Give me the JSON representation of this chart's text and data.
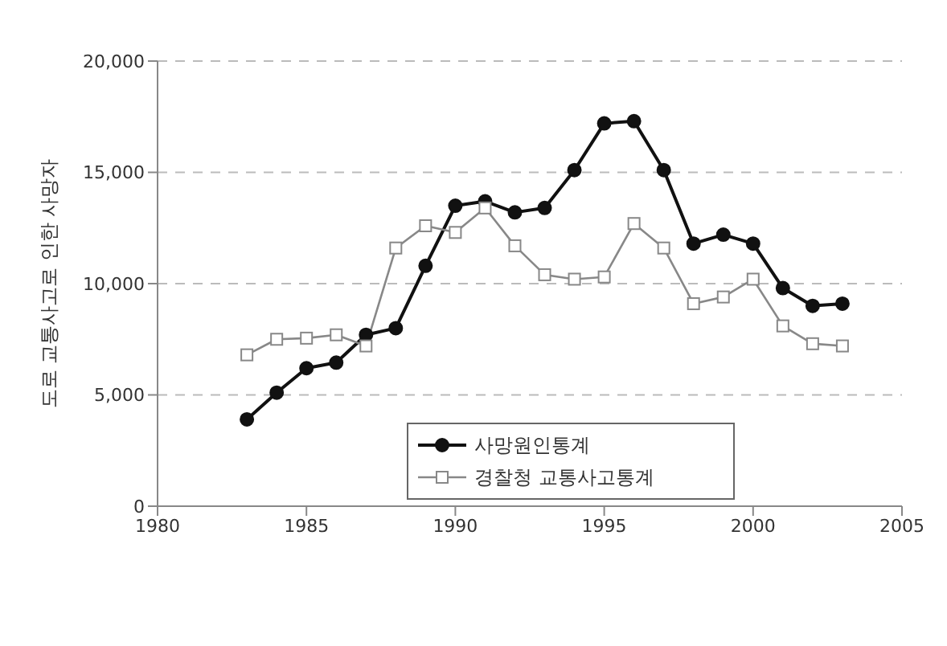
{
  "chart_data": {
    "type": "line",
    "ylabel": "도로 교통사고로 인한 사망자",
    "x": [
      1983,
      1984,
      1985,
      1986,
      1987,
      1988,
      1989,
      1990,
      1991,
      1992,
      1993,
      1994,
      1995,
      1996,
      1997,
      1998,
      1999,
      2000,
      2001,
      2002,
      2003
    ],
    "series": [
      {
        "name": "사망원인통계",
        "color": "#111111",
        "marker": "circle",
        "values": [
          3900,
          5100,
          6200,
          6450,
          7700,
          8000,
          10800,
          13500,
          13700,
          13200,
          13400,
          15100,
          17200,
          17300,
          15100,
          11800,
          12200,
          11800,
          9800,
          9000,
          9100
        ]
      },
      {
        "name": "경찰청 교통사고통계",
        "color": "#888888",
        "marker": "square",
        "values": [
          6800,
          7500,
          7550,
          7700,
          7200,
          11600,
          12600,
          12300,
          13400,
          11700,
          10400,
          10200,
          10300,
          12700,
          11600,
          9100,
          9400,
          10200,
          8100,
          7300,
          7200
        ]
      }
    ],
    "xlim": [
      1980,
      2005
    ],
    "xticks": [
      1980,
      1985,
      1990,
      1995,
      2000,
      2005
    ],
    "ylim": [
      0,
      20000
    ],
    "yticks": [
      0,
      {
        "value": 5000,
        "label": "5,000"
      },
      {
        "value": 10000,
        "label": "10,000"
      },
      {
        "value": 15000,
        "label": "15,000"
      },
      {
        "value": 20000,
        "label": "20,000"
      }
    ],
    "grid": "y",
    "legend": "bottom",
    "line_style": "solid"
  }
}
